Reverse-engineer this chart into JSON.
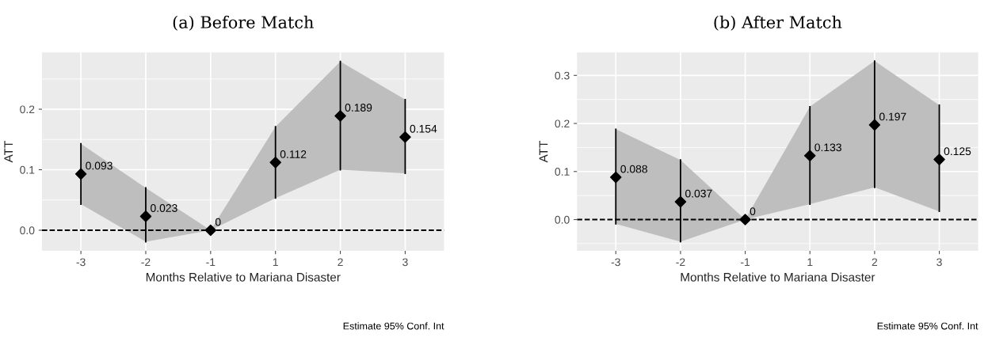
{
  "chart_data": [
    {
      "type": "scatter",
      "title": "(a) Before Match",
      "xlabel": "Months Relative to Mariana Disaster",
      "ylabel": "ATT",
      "categories": [
        "-3",
        "-2",
        "-1",
        "1",
        "2",
        "3"
      ],
      "series": [
        {
          "color": "#000000",
          "values": [
            0.093,
            0.023,
            0,
            0.112,
            0.189,
            0.154
          ],
          "errors": [
            [
              0.043,
              0.143
            ],
            [
              -0.019,
              0.07
            ],
            [
              0,
              0
            ],
            [
              0.053,
              0.171
            ],
            [
              0.1,
              0.279
            ],
            [
              0.094,
              0.216
            ]
          ],
          "lower": [
            0.043,
            -0.019,
            0,
            0.053,
            0.1,
            0.094
          ],
          "upper": [
            0.143,
            0.07,
            0,
            0.171,
            0.279,
            0.216
          ]
        }
      ],
      "ylim": [
        -0.034,
        0.294
      ],
      "yticks": [
        {
          "value": 0,
          "label": "0.0"
        },
        {
          "value": 0.05,
          "label": null
        },
        0.1,
        {
          "value": 0.15,
          "label": null
        },
        0.2,
        {
          "value": 0.25,
          "label": null
        }
      ],
      "ref_lines": [
        {
          "axis": "y",
          "value": 0,
          "line_style": "dashed",
          "color": "#000000"
        }
      ],
      "data_labels": true,
      "grid": true,
      "marker": "diamond",
      "legend": false,
      "annotations": [
        "Estimate 95% Conf. Int"
      ]
    },
    {
      "type": "scatter",
      "title": "(b) After Match",
      "xlabel": "Months Relative to Mariana Disaster",
      "ylabel": "ATT",
      "categories": [
        "-3",
        "-2",
        "-1",
        "1",
        "2",
        "3"
      ],
      "series": [
        {
          "color": "#000000",
          "values": [
            0.088,
            0.037,
            0,
            0.133,
            0.197,
            0.125
          ],
          "errors": [
            [
              -0.009,
              0.188
            ],
            [
              -0.046,
              0.124
            ],
            [
              0,
              0
            ],
            [
              0.032,
              0.235
            ],
            [
              0.067,
              0.33
            ],
            [
              0.017,
              0.238
            ]
          ],
          "lower": [
            -0.009,
            -0.046,
            0,
            0.032,
            0.067,
            0.017
          ],
          "upper": [
            0.188,
            0.124,
            0,
            0.235,
            0.33,
            0.238
          ]
        }
      ],
      "ylim": [
        -0.065,
        0.348
      ],
      "yticks": [
        {
          "value": -0.05,
          "label": null
        },
        {
          "value": 0,
          "label": "0.0"
        },
        {
          "value": 0.05,
          "label": null
        },
        0.1,
        {
          "value": 0.15,
          "label": null
        },
        0.2,
        {
          "value": 0.25,
          "label": null
        },
        0.3
      ],
      "ref_lines": [
        {
          "axis": "y",
          "value": 0,
          "line_style": "dashed",
          "color": "#000000"
        }
      ],
      "data_labels": true,
      "grid": true,
      "marker": "diamond",
      "legend": false,
      "annotations": [
        "Estimate 95% Conf. Int"
      ]
    }
  ]
}
